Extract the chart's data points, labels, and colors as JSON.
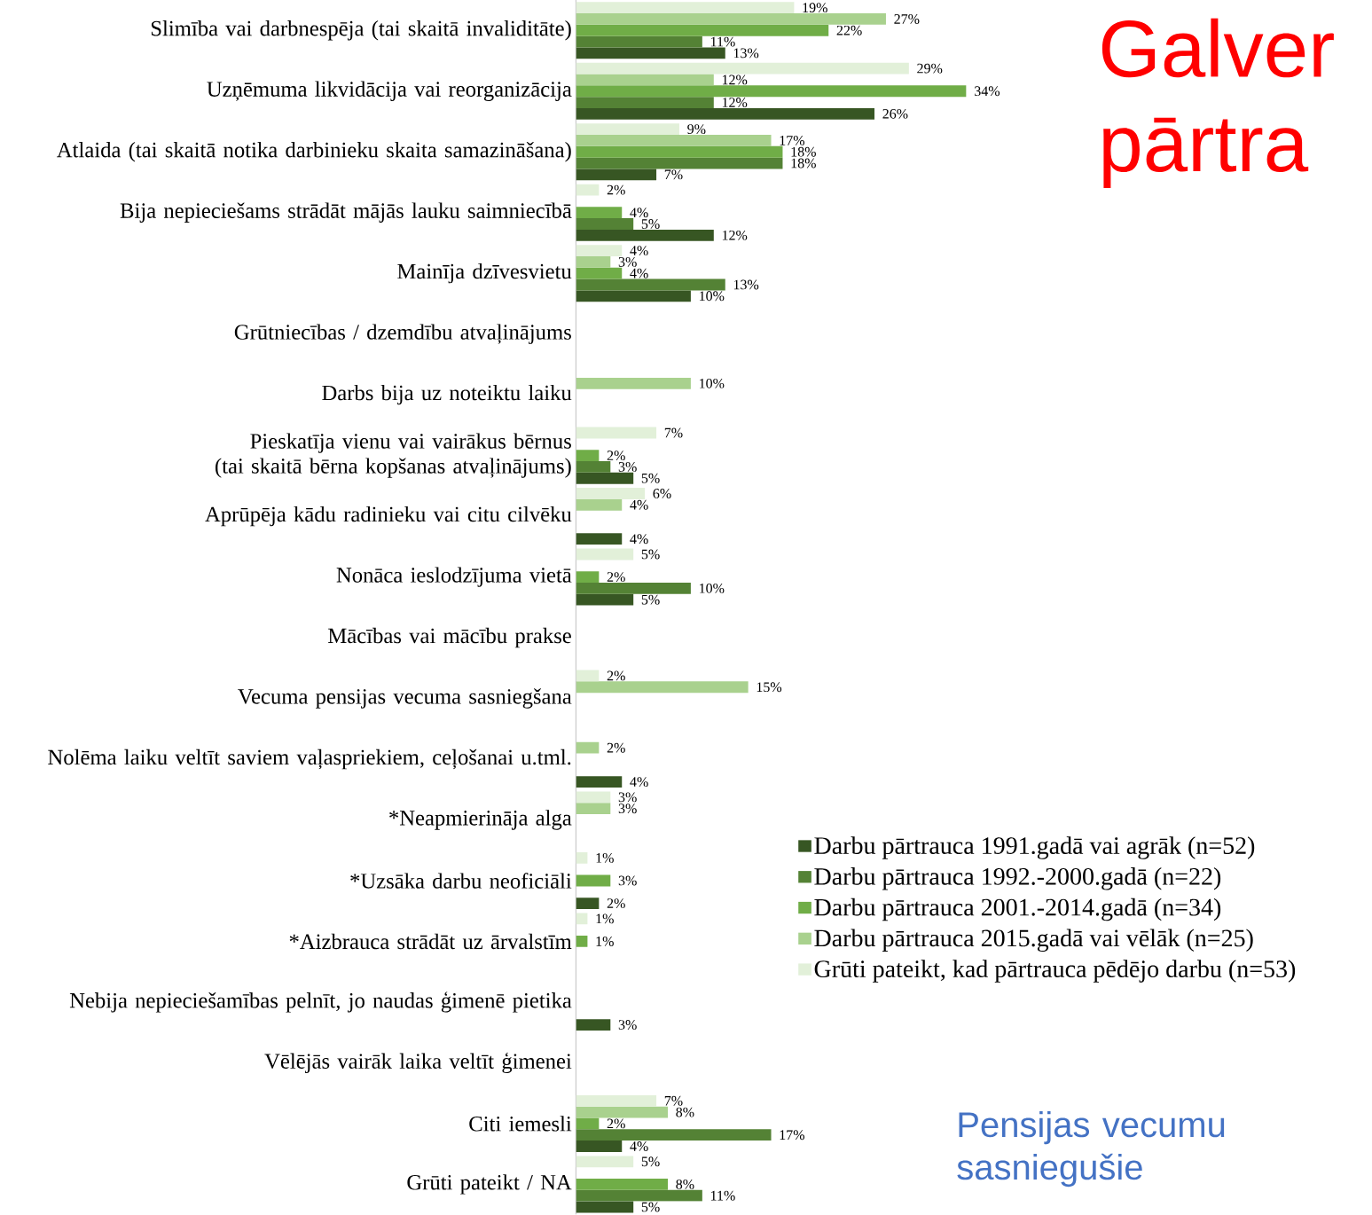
{
  "chart_data": {
    "type": "bar",
    "orientation": "horizontal",
    "title": "Galver pārtra",
    "subtitle": "Pensijas vecumu sasniegušie",
    "legend": "right",
    "categories": [
      "Slimība vai darbnespēja (tai skaitā invaliditāte)",
      "Uzņēmuma likvidācija vai reorganizācija",
      "Atlaida (tai skaitā notika darbinieku skaita samazināšana)",
      "Bija nepieciešams strādāt mājās lauku saimniecībā",
      "Mainīja dzīvesvietu",
      "Grūtniecības / dzemdību atvaļinājums",
      "Darbs bija uz noteiktu laiku",
      "Pieskatīja vienu vai vairākus bērnus (tai skaitā bērna kopšanas atvaļinājums)",
      "Aprūpēja kādu radinieku vai citu cilvēku",
      "Nonāca ieslodzījuma vietā",
      "Mācības vai mācību prakse",
      "Vecuma pensijas vecuma sasniegšana",
      "Nolēma laiku veltīt saviem vaļaspriekiem, ceļošanai u.tml.",
      "*Neapmierināja alga",
      "*Uzsāka darbu neoficiāli",
      "*Aizbrauca strādāt uz ārvalstīm",
      "Nebija nepieciešamības pelnīt, jo naudas ģimenē pietika",
      "Vēlējās vairāk laika veltīt ģimenei",
      "Citi iemesli",
      "Grūti pateikt / NA"
    ],
    "series": [
      {
        "name": "Darbu pārtrauca 1991.gadā vai agrāk (n=52)",
        "color": "#375623",
        "values": [
          13,
          26,
          7,
          12,
          10,
          null,
          null,
          5,
          4,
          5,
          null,
          null,
          4,
          null,
          2,
          null,
          3,
          null,
          4,
          5
        ],
        "value_labels": [
          "13%",
          "26%",
          "7%",
          "12%",
          "10%",
          null,
          null,
          "5%",
          "4%",
          "5%",
          null,
          null,
          "4%",
          null,
          "2%",
          null,
          "3%",
          null,
          "4%",
          "5%"
        ]
      },
      {
        "name": "Darbu pārtrauca 1992.-2000.gadā (n=22)",
        "color": "#548235",
        "values": [
          11,
          12,
          18,
          5,
          13,
          null,
          null,
          3,
          null,
          10,
          null,
          null,
          null,
          null,
          null,
          null,
          null,
          null,
          17,
          11
        ],
        "value_labels": [
          "11%",
          "12%",
          "18%",
          "5%",
          "13%",
          null,
          null,
          "3%",
          null,
          "10%",
          null,
          null,
          null,
          null,
          null,
          null,
          null,
          null,
          "17%",
          "11%"
        ]
      },
      {
        "name": "Darbu pārtrauca 2001.-2014.gadā (n=34)",
        "color": "#70ad47",
        "values": [
          22,
          34,
          18,
          4,
          4,
          null,
          null,
          2,
          null,
          2,
          null,
          null,
          null,
          null,
          3,
          1,
          null,
          null,
          2,
          8
        ],
        "value_labels": [
          "22%",
          "34%",
          "18%",
          "4%",
          "4%",
          null,
          null,
          "2%",
          null,
          "2%",
          null,
          null,
          null,
          null,
          "3%",
          "1%",
          null,
          null,
          "2%",
          "8%"
        ]
      },
      {
        "name": "Darbu pārtrauca 2015.gadā vai vēlāk (n=25)",
        "color": "#a9d18e",
        "values": [
          27,
          12,
          17,
          null,
          3,
          null,
          10,
          null,
          4,
          null,
          null,
          15,
          2,
          3,
          null,
          null,
          null,
          null,
          8,
          null
        ],
        "value_labels": [
          "27%",
          "12%",
          "17%",
          null,
          "3%",
          null,
          "10%",
          null,
          "4%",
          null,
          null,
          "15%",
          "2%",
          "3%",
          null,
          null,
          null,
          null,
          "8%",
          null
        ]
      },
      {
        "name": "Grūti pateikt, kad pārtrauca pēdējo darbu (n=53)",
        "color": "#e2f0d9",
        "values": [
          19,
          29,
          9,
          2,
          4,
          null,
          null,
          7,
          6,
          5,
          null,
          2,
          null,
          3,
          1,
          1,
          null,
          null,
          7,
          5
        ],
        "value_labels": [
          "19%",
          "29%",
          "9%",
          "2%",
          "4%",
          null,
          null,
          "7%",
          "6%",
          "5%",
          null,
          "2%",
          null,
          "3%",
          "1%",
          "1%",
          null,
          null,
          "7%",
          "5%"
        ]
      }
    ]
  }
}
